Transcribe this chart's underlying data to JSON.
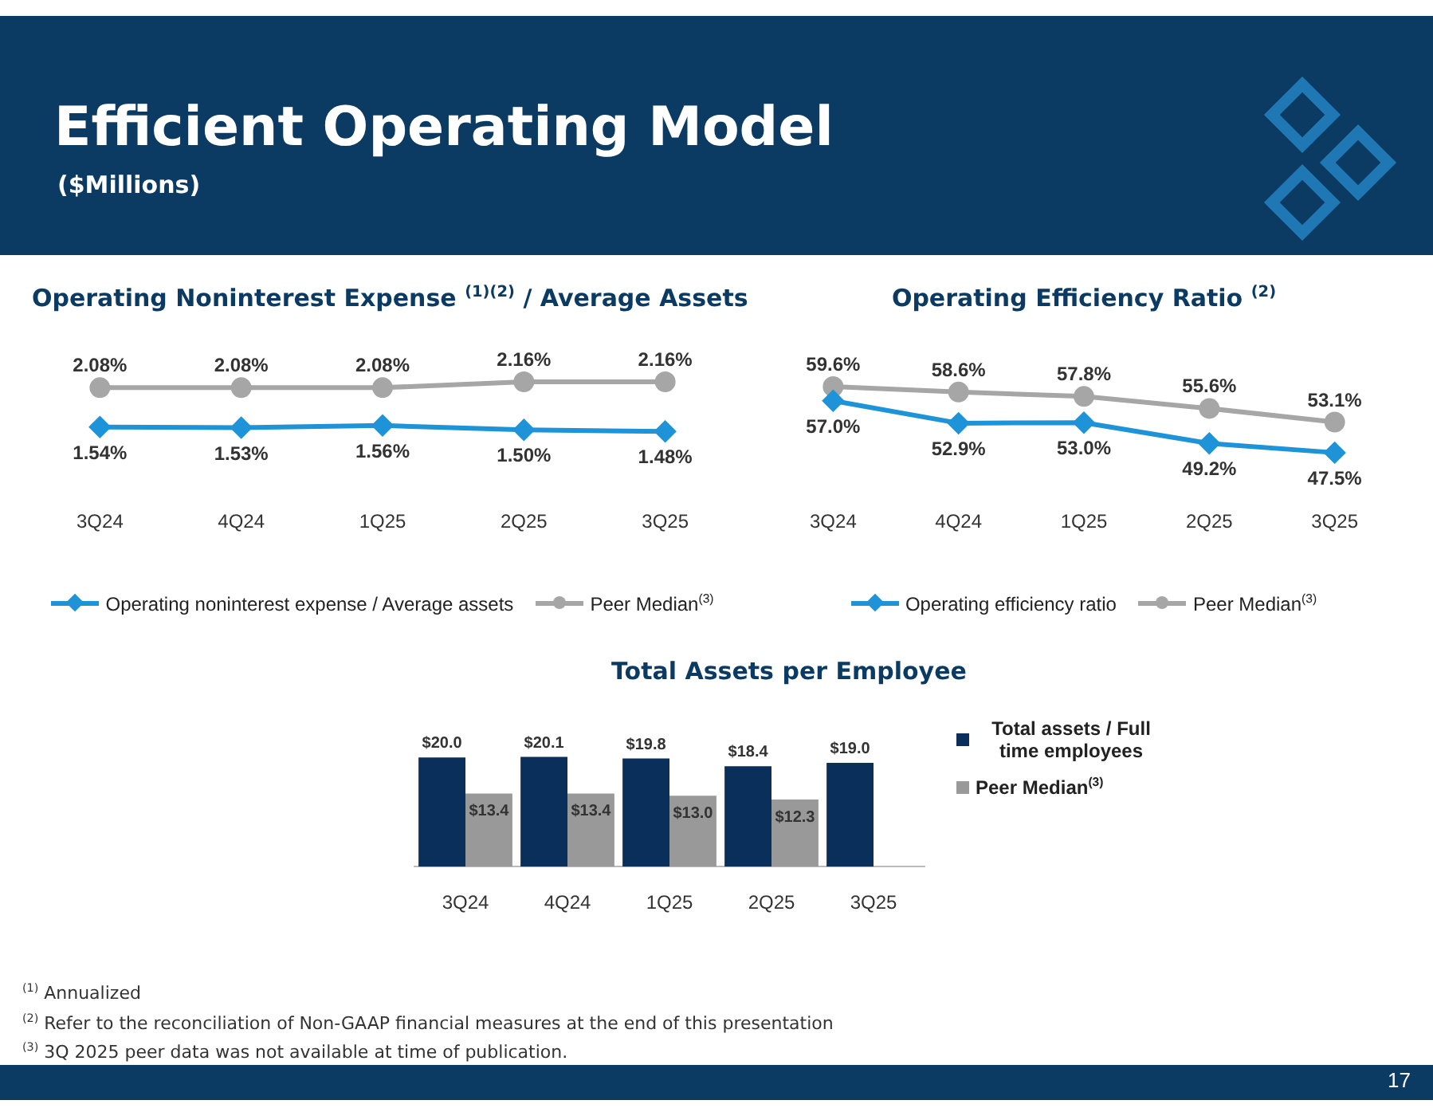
{
  "chart_data": [
    {
      "type": "other",
      "title": "Efficient Operating Model",
      "subtitle": "($Millions)",
      "annotations": [
        "$^{(1)}$ Annualized",
        "$^{(2)}$ Refer to the reconciliation of Non-GAAP financial measures at the end of this presentation",
        "$^{(3)}$ 3Q 2025 peer data was not available at time of publication.",
        "17"
      ]
    },
    {
      "type": "line",
      "title": "Operating Noninterest Expense $^{(1)(2)}$ / Average Assets",
      "categories": [
        "3Q24",
        "4Q24",
        "1Q25",
        "2Q25",
        "3Q25"
      ],
      "tick_labels": "x",
      "legend": "bottom",
      "series": [
        {
          "name": "Operating noninterest expense / Average assets",
          "color": "#1f93d8",
          "marker": "diamond",
          "values": [
            1.54,
            1.53,
            1.56,
            1.5,
            1.48
          ],
          "value_labels": [
            "1.54%",
            "1.53%",
            "1.56%",
            "1.50%",
            "1.48%"
          ]
        },
        {
          "name": "Peer Median$^{(3)}$",
          "color": "#a6a6a6",
          "marker": "circle",
          "values": [
            2.08,
            2.08,
            2.08,
            2.16,
            2.16
          ],
          "value_labels": [
            "2.08%",
            "2.08%",
            "2.08%",
            "2.16%",
            "2.16%"
          ]
        }
      ]
    },
    {
      "type": "line",
      "title": "Operating Efficiency Ratio $^{(2)}$",
      "categories": [
        "3Q24",
        "4Q24",
        "1Q25",
        "2Q25",
        "3Q25"
      ],
      "tick_labels": "x",
      "legend": "bottom",
      "series": [
        {
          "name": "Operating efficiency ratio",
          "color": "#1f93d8",
          "marker": "diamond",
          "values": [
            57.0,
            52.9,
            53.0,
            49.2,
            47.5
          ],
          "value_labels": [
            "57.0%",
            "52.9%",
            "53.0%",
            "49.2%",
            "47.5%"
          ]
        },
        {
          "name": "Peer Median$^{(3)}$",
          "color": "#a6a6a6",
          "marker": "circle",
          "values": [
            59.6,
            58.6,
            57.8,
            55.6,
            53.1
          ],
          "value_labels": [
            "59.6%",
            "58.6%",
            "57.8%",
            "55.6%",
            "53.1%"
          ]
        }
      ]
    },
    {
      "type": "bar",
      "title": "Total Assets per Employee",
      "categories": [
        "3Q24",
        "4Q24",
        "1Q25",
        "2Q25",
        "3Q25"
      ],
      "tick_labels": "x",
      "legend": "right",
      "series": [
        {
          "name": "Total assets / Full time employees",
          "color": "#0b2f5b",
          "values": [
            20.0,
            20.1,
            19.8,
            18.4,
            19.0
          ],
          "value_labels": [
            "$20.0",
            "$20.1",
            "$19.8",
            "$18.4",
            "$19.0"
          ]
        },
        {
          "name": "Peer Median$^{(3)}$",
          "color": "#999999",
          "values": [
            13.4,
            13.4,
            13.0,
            12.3,
            null
          ],
          "value_labels": [
            "$13.4",
            "$13.4",
            "$13.0",
            "$12.3",
            null
          ]
        }
      ]
    }
  ]
}
